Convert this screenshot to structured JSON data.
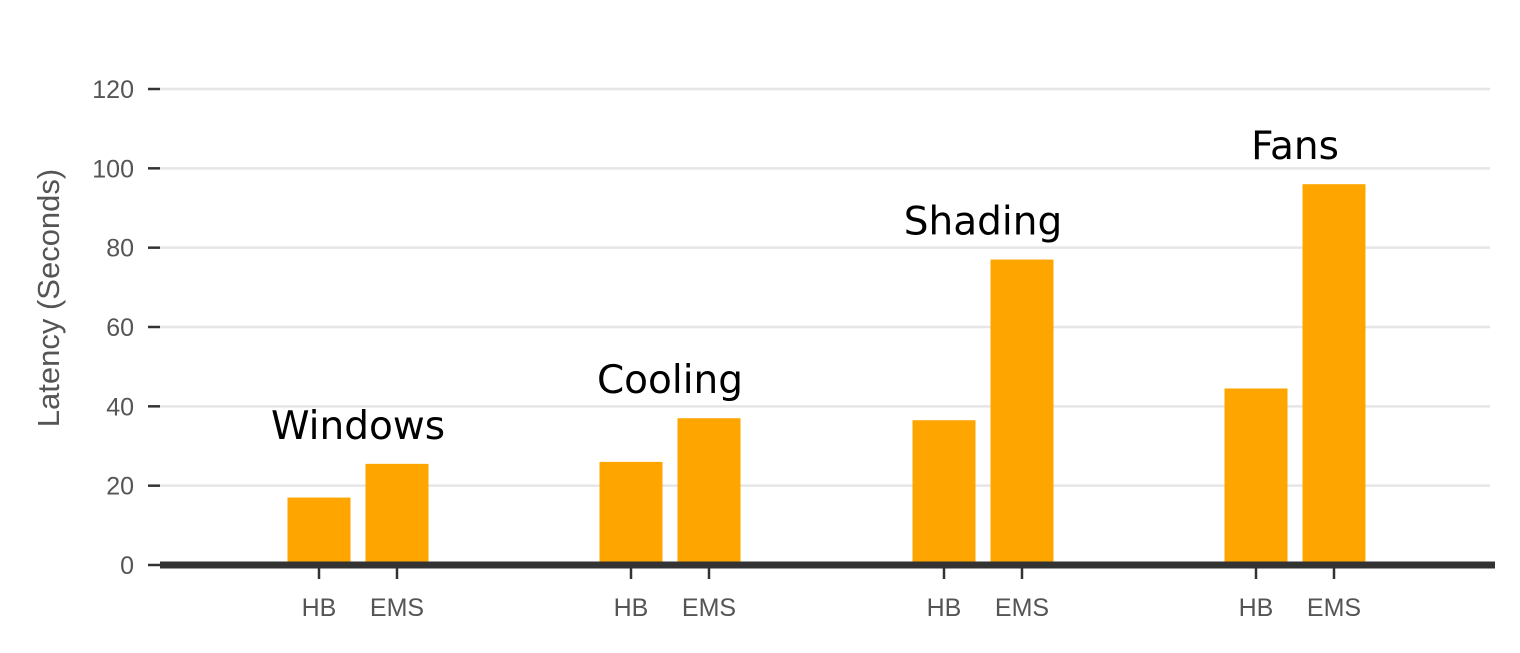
{
  "chart_data": {
    "type": "bar",
    "ylabel": "Latency (Seconds)",
    "ylim": [
      0,
      120
    ],
    "yticks": [
      0,
      20,
      40,
      60,
      80,
      100,
      120
    ],
    "grid": true,
    "bar_color": "#FFA500",
    "series_labels": [
      "HB",
      "EMS"
    ],
    "groups": [
      {
        "label": "Windows",
        "values": [
          17,
          25.5
        ]
      },
      {
        "label": "Cooling",
        "values": [
          26,
          37
        ]
      },
      {
        "label": "Shading",
        "values": [
          36.5,
          77
        ]
      },
      {
        "label": "Fans",
        "values": [
          44.5,
          96
        ]
      }
    ]
  }
}
